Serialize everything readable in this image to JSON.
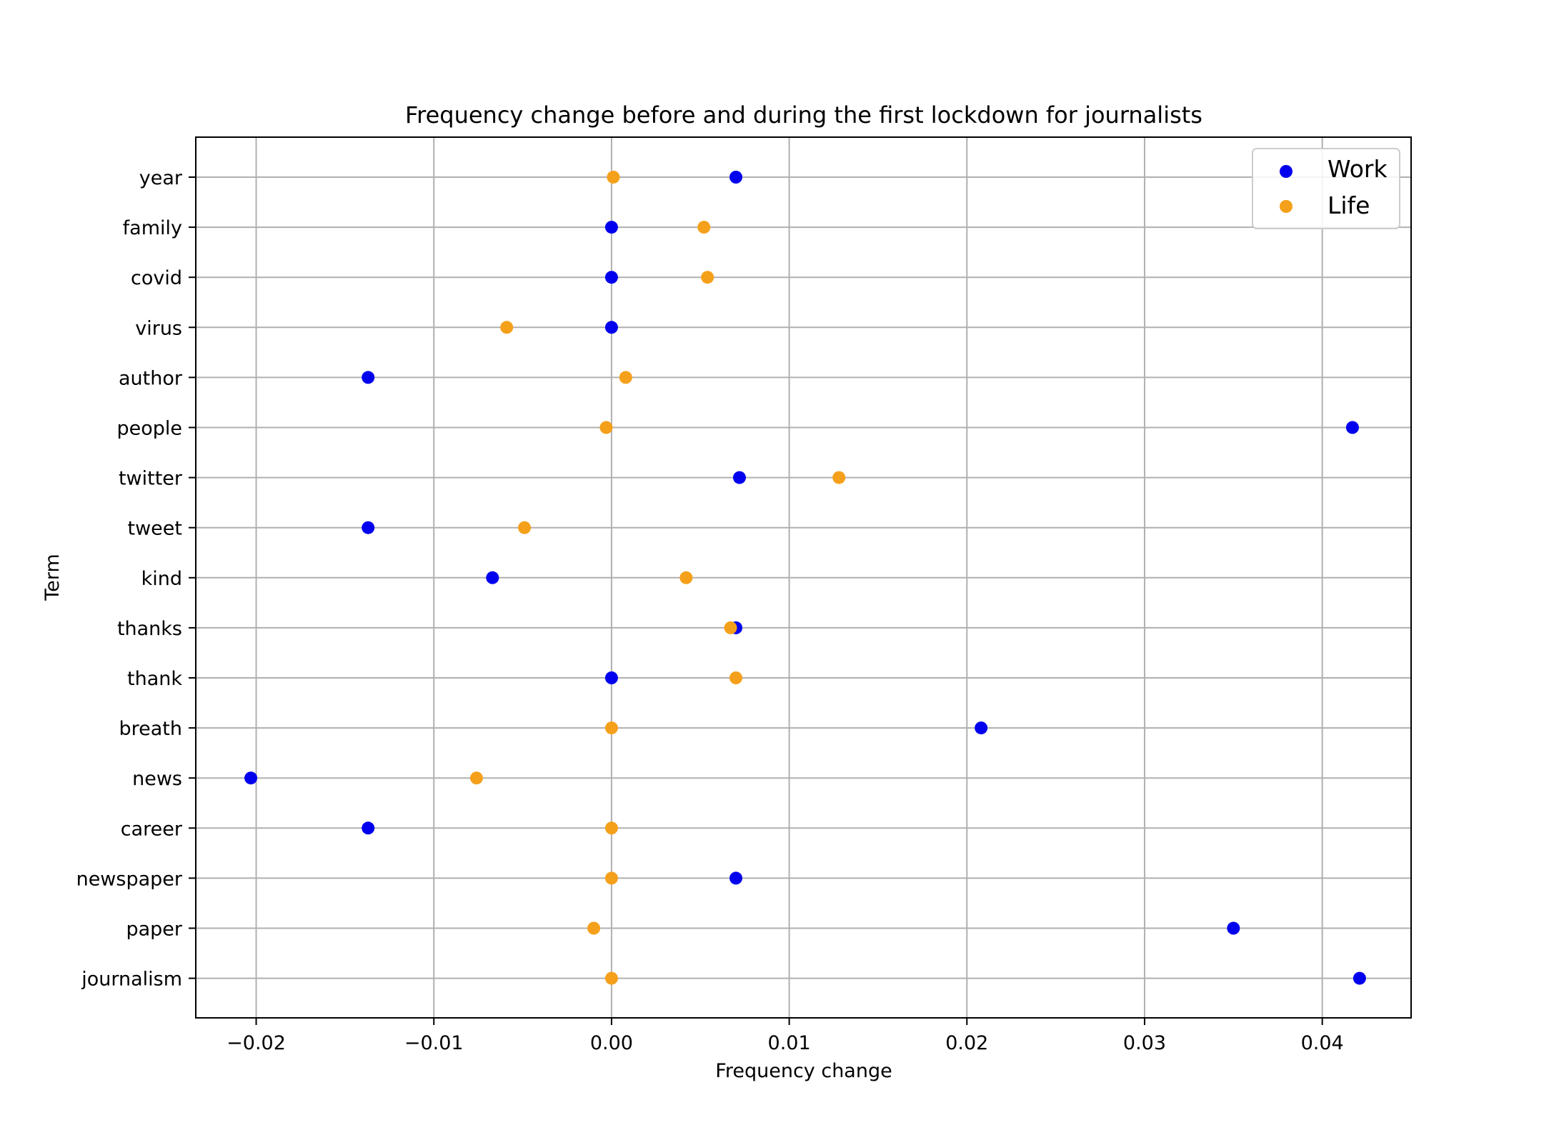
{
  "chart_data": {
    "type": "scatter",
    "title": "Frequency change before and during the first lockdown for journalists",
    "xlabel": "Frequency change",
    "ylabel": "Term",
    "xlim": [
      -0.0234,
      0.045
    ],
    "xticks": [
      -0.02,
      -0.01,
      0.0,
      0.01,
      0.02,
      0.03,
      0.04
    ],
    "xtick_labels": [
      "−0.02",
      "−0.01",
      "0.00",
      "0.01",
      "0.02",
      "0.03",
      "0.04"
    ],
    "categories": [
      "year",
      "family",
      "covid",
      "virus",
      "author",
      "people",
      "twitter",
      "tweet",
      "kind",
      "thanks",
      "thank",
      "breath",
      "news",
      "career",
      "newspaper",
      "paper",
      "journalism"
    ],
    "grid": true,
    "legend_position": "top-right",
    "series": [
      {
        "name": "Work",
        "color": "#0000ee",
        "values": [
          0.007,
          0.0,
          0.0,
          0.0,
          -0.0137,
          0.0417,
          0.0072,
          -0.0137,
          -0.0067,
          0.007,
          0.0,
          0.0208,
          -0.0203,
          -0.0137,
          0.007,
          0.035,
          0.0421
        ]
      },
      {
        "name": "Life",
        "color": "#f5a01a",
        "values": [
          0.0001,
          0.0052,
          0.0054,
          -0.0059,
          0.0008,
          -0.0003,
          0.0128,
          -0.0049,
          0.0042,
          0.0067,
          0.007,
          0.0,
          -0.0076,
          0.0,
          0.0,
          -0.001,
          0.0
        ]
      }
    ]
  }
}
